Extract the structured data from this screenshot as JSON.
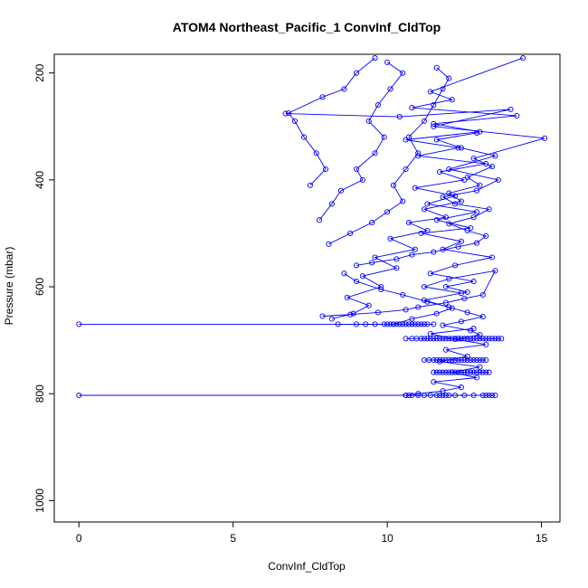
{
  "chart_data": {
    "type": "line",
    "title": "ATOM4 Northeast_Pacific_1 ConvInf_CldTop",
    "xlabel": "ConvInf_CldTop",
    "ylabel": "Pressure (mbar)",
    "xlim": [
      -0.8,
      15.6
    ],
    "ylim": [
      1040,
      165
    ],
    "y_inverted": true,
    "grid": false,
    "x_ticks": [
      0,
      5,
      10,
      15
    ],
    "y_ticks": [
      200,
      400,
      600,
      800,
      1000
    ],
    "series_color": "#0000ff",
    "marker": "open-circle",
    "series": [
      {
        "points": [
          [
            0.0,
            670
          ],
          [
            10.2,
            670
          ],
          [
            10.8,
            660
          ],
          [
            11.6,
            650
          ],
          [
            12.1,
            640
          ],
          [
            11.2,
            625
          ],
          [
            12.6,
            610
          ],
          [
            11.9,
            600
          ],
          [
            12.8,
            590
          ],
          [
            11.4,
            575
          ],
          [
            12.2,
            560
          ],
          [
            13.4,
            545
          ],
          [
            11.8,
            530
          ],
          [
            12.4,
            515
          ],
          [
            11.1,
            500
          ],
          [
            12.7,
            490
          ],
          [
            11.6,
            475
          ],
          [
            12.9,
            460
          ],
          [
            11.3,
            445
          ],
          [
            12.2,
            430
          ],
          [
            10.9,
            415
          ],
          [
            12.5,
            400
          ],
          [
            11.7,
            385
          ],
          [
            13.2,
            370
          ],
          [
            11.0,
            355
          ],
          [
            12.3,
            340
          ],
          [
            10.6,
            325
          ],
          [
            13.0,
            310
          ],
          [
            11.5,
            295
          ],
          [
            14.2,
            280
          ],
          [
            10.8,
            265
          ],
          [
            12.1,
            250
          ],
          [
            11.4,
            235
          ],
          [
            14.4,
            172
          ]
        ]
      },
      {
        "points": [
          [
            7.5,
            410
          ],
          [
            8.0,
            380
          ],
          [
            7.7,
            350
          ],
          [
            7.3,
            320
          ],
          [
            7.0,
            290
          ],
          [
            6.8,
            275
          ],
          [
            7.9,
            245
          ],
          [
            8.6,
            230
          ],
          [
            9.0,
            200
          ],
          [
            9.6,
            172
          ]
        ]
      },
      {
        "points": [
          [
            7.8,
            475
          ],
          [
            8.2,
            445
          ],
          [
            8.5,
            420
          ],
          [
            9.2,
            400
          ],
          [
            9.0,
            380
          ],
          [
            9.6,
            350
          ],
          [
            9.9,
            320
          ],
          [
            9.4,
            290
          ],
          [
            9.7,
            260
          ],
          [
            10.1,
            230
          ],
          [
            10.5,
            200
          ],
          [
            10.0,
            180
          ]
        ]
      },
      {
        "points": [
          [
            8.1,
            520
          ],
          [
            8.8,
            500
          ],
          [
            9.5,
            480
          ],
          [
            10.0,
            460
          ],
          [
            10.5,
            440
          ],
          [
            10.2,
            410
          ],
          [
            10.6,
            380
          ],
          [
            11.0,
            350
          ],
          [
            10.7,
            320
          ],
          [
            11.2,
            290
          ],
          [
            11.5,
            260
          ],
          [
            11.8,
            230
          ],
          [
            12.0,
            210
          ],
          [
            11.6,
            190
          ]
        ]
      },
      {
        "points": [
          [
            8.2,
            660
          ],
          [
            8.9,
            650
          ],
          [
            9.4,
            635
          ],
          [
            8.7,
            620
          ],
          [
            9.8,
            600
          ],
          [
            9.2,
            580
          ],
          [
            10.3,
            565
          ],
          [
            9.6,
            545
          ],
          [
            10.9,
            530
          ],
          [
            10.1,
            510
          ],
          [
            11.3,
            495
          ],
          [
            10.7,
            480
          ],
          [
            11.9,
            470
          ],
          [
            11.2,
            455
          ],
          [
            12.4,
            440
          ],
          [
            12.0,
            425
          ],
          [
            13.0,
            410
          ],
          [
            12.6,
            395
          ],
          [
            13.4,
            375
          ],
          [
            12.8,
            360
          ],
          [
            15.1,
            322
          ],
          [
            11.5,
            300
          ],
          [
            14.0,
            268
          ],
          [
            10.4,
            282
          ],
          [
            6.7,
            276
          ]
        ]
      },
      {
        "points": [
          [
            9.0,
            560
          ],
          [
            9.5,
            555
          ],
          [
            10.3,
            548
          ],
          [
            10.8,
            540
          ],
          [
            11.5,
            535
          ],
          [
            12.3,
            525
          ],
          [
            12.9,
            518
          ],
          [
            13.2,
            505
          ],
          [
            12.6,
            495
          ],
          [
            12.0,
            482
          ],
          [
            12.8,
            470
          ],
          [
            13.3,
            455
          ],
          [
            12.2,
            445
          ],
          [
            11.8,
            432
          ],
          [
            12.9,
            420
          ],
          [
            13.6,
            400
          ],
          [
            12.0,
            380
          ],
          [
            13.5,
            355
          ],
          [
            12.4,
            340
          ],
          [
            11.6,
            325
          ],
          [
            12.9,
            312
          ]
        ]
      },
      {
        "points": [
          [
            8.6,
            575
          ],
          [
            9.0,
            590
          ],
          [
            9.8,
            605
          ],
          [
            10.5,
            615
          ],
          [
            11.3,
            628
          ],
          [
            12.0,
            638
          ],
          [
            12.6,
            648
          ],
          [
            13.1,
            656
          ],
          [
            12.4,
            665
          ],
          [
            11.8,
            672
          ],
          [
            12.7,
            682
          ],
          [
            13.0,
            690
          ],
          [
            12.3,
            697
          ]
        ]
      },
      {
        "points": [
          [
            7.9,
            655
          ],
          [
            8.8,
            652
          ],
          [
            9.7,
            648
          ],
          [
            10.6,
            643
          ],
          [
            11.0,
            638
          ],
          [
            11.9,
            630
          ],
          [
            12.5,
            622
          ],
          [
            13.1,
            615
          ],
          [
            13.5,
            570
          ],
          [
            12.0,
            585
          ],
          [
            11.2,
            600
          ],
          [
            12.4,
            612
          ]
        ]
      },
      {
        "points": [
          [
            0.0,
            803
          ],
          [
            10.6,
            803
          ],
          [
            11.0,
            800
          ],
          [
            11.8,
            795
          ],
          [
            12.4,
            788
          ],
          [
            11.5,
            778
          ],
          [
            12.9,
            770
          ],
          [
            12.1,
            760
          ],
          [
            13.0,
            750
          ],
          [
            11.7,
            740
          ],
          [
            12.6,
            730
          ],
          [
            11.9,
            718
          ],
          [
            13.2,
            708
          ],
          [
            12.2,
            698
          ],
          [
            11.4,
            688
          ],
          [
            12.8,
            678
          ]
        ]
      }
    ],
    "clusters": [
      {
        "pressure": 697,
        "x_values": [
          10.6,
          10.8,
          10.95,
          11.1,
          11.2,
          11.3,
          11.4,
          11.5,
          11.6,
          11.7,
          11.8,
          11.9,
          12.0,
          12.1,
          12.2,
          12.3,
          12.4,
          12.5,
          12.6,
          12.7,
          12.8,
          12.9,
          13.0,
          13.1,
          13.2,
          13.3,
          13.4,
          13.5,
          13.6,
          13.7
        ]
      },
      {
        "pressure": 737,
        "x_values": [
          11.2,
          11.35,
          11.5,
          11.6,
          11.7,
          11.8,
          11.9,
          12.0,
          12.1,
          12.2,
          12.3,
          12.4,
          12.5,
          12.6,
          12.7,
          12.8,
          12.9,
          13.0,
          13.1,
          13.2
        ]
      },
      {
        "pressure": 760,
        "x_values": [
          11.5,
          11.6,
          11.7,
          11.8,
          11.9,
          12.0,
          12.1,
          12.2,
          12.3,
          12.4,
          12.5,
          12.6,
          12.7,
          12.8,
          12.9,
          13.0,
          13.1,
          13.2,
          13.3
        ]
      },
      {
        "pressure": 670,
        "x_values": [
          8.4,
          9.0,
          9.3,
          9.6,
          9.9,
          10.0,
          10.1,
          10.2,
          10.3,
          10.4,
          10.5,
          10.6,
          10.7,
          10.8,
          10.9,
          11.0,
          11.1,
          11.2,
          11.3,
          11.5
        ]
      },
      {
        "pressure": 803,
        "x_values": [
          10.6,
          10.7,
          10.8,
          11.0,
          11.2,
          11.4,
          11.6,
          11.7,
          11.8,
          11.9,
          12.0,
          12.2,
          12.5,
          12.8,
          13.1,
          13.2,
          13.3,
          13.4,
          13.5
        ]
      }
    ]
  }
}
